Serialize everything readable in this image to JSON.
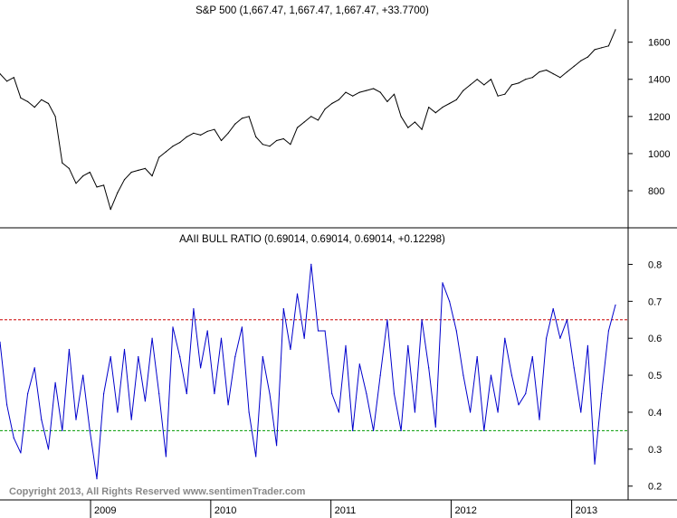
{
  "chart_data": [
    {
      "type": "line",
      "title": "S&P 500 (1,667.47, 1,667.47, 1,667.47, +33.7700)",
      "xlabel": "",
      "ylabel": "",
      "ylim": [
        620,
        1720
      ],
      "yticks": [
        800,
        1000,
        1200,
        1400,
        1600
      ],
      "grid": false,
      "color": "#000000",
      "series": [
        {
          "x": [
            "2008-04-01",
            "2008-04-22",
            "2008-05-13",
            "2008-06-03",
            "2008-06-24",
            "2008-07-15",
            "2008-08-05",
            "2008-08-26",
            "2008-09-16",
            "2008-10-07",
            "2008-10-28",
            "2008-11-18",
            "2008-12-09",
            "2008-12-30",
            "2009-01-20",
            "2009-02-10",
            "2009-03-03",
            "2009-03-24",
            "2009-04-14",
            "2009-05-05",
            "2009-05-26",
            "2009-06-16",
            "2009-07-07",
            "2009-07-28",
            "2009-08-18",
            "2009-09-08",
            "2009-09-29",
            "2009-10-20",
            "2009-11-10",
            "2009-12-01",
            "2009-12-22",
            "2010-01-12",
            "2010-02-02",
            "2010-02-23",
            "2010-03-16",
            "2010-04-06",
            "2010-04-27",
            "2010-05-18",
            "2010-06-08",
            "2010-06-29",
            "2010-07-20",
            "2010-08-10",
            "2010-08-31",
            "2010-09-21",
            "2010-10-12",
            "2010-11-02",
            "2010-11-23",
            "2010-12-14",
            "2011-01-04",
            "2011-01-25",
            "2011-02-15",
            "2011-03-08",
            "2011-03-29",
            "2011-04-19",
            "2011-05-10",
            "2011-05-31",
            "2011-06-21",
            "2011-07-12",
            "2011-08-02",
            "2011-08-23",
            "2011-09-13",
            "2011-10-04",
            "2011-10-25",
            "2011-11-15",
            "2011-12-06",
            "2011-12-27",
            "2012-01-17",
            "2012-02-07",
            "2012-02-28",
            "2012-03-20",
            "2012-04-10",
            "2012-05-01",
            "2012-05-22",
            "2012-06-12",
            "2012-07-03",
            "2012-07-24",
            "2012-08-14",
            "2012-09-04",
            "2012-09-25",
            "2012-10-16",
            "2012-11-06",
            "2012-11-27",
            "2012-12-18",
            "2013-01-08",
            "2013-01-29",
            "2013-02-19",
            "2013-03-12",
            "2013-04-02",
            "2013-04-23",
            "2013-05-14"
          ],
          "values": [
            1430,
            1390,
            1410,
            1300,
            1280,
            1250,
            1290,
            1270,
            1200,
            950,
            920,
            840,
            880,
            900,
            820,
            830,
            700,
            790,
            860,
            900,
            910,
            920,
            880,
            980,
            1010,
            1040,
            1060,
            1090,
            1110,
            1100,
            1120,
            1130,
            1070,
            1110,
            1160,
            1190,
            1200,
            1090,
            1050,
            1040,
            1070,
            1080,
            1050,
            1140,
            1170,
            1200,
            1180,
            1240,
            1270,
            1290,
            1330,
            1310,
            1330,
            1340,
            1350,
            1330,
            1280,
            1320,
            1200,
            1140,
            1170,
            1130,
            1250,
            1220,
            1250,
            1270,
            1290,
            1340,
            1370,
            1400,
            1370,
            1400,
            1310,
            1320,
            1370,
            1380,
            1400,
            1410,
            1440,
            1450,
            1430,
            1410,
            1440,
            1470,
            1500,
            1520,
            1560,
            1570,
            1580,
            1667
          ]
        }
      ]
    },
    {
      "type": "line",
      "title": "AAII BULL RATIO (0.69014, 0.69014, 0.69014, +0.12298)",
      "xlabel": "",
      "ylabel": "",
      "ylim": [
        0.17,
        0.85
      ],
      "yticks": [
        0.2,
        0.3,
        0.4,
        0.5,
        0.6,
        0.7,
        0.8
      ],
      "grid": false,
      "color": "#0000cc",
      "reference_lines": [
        {
          "value": 0.65,
          "color": "#cc0000",
          "style": "dashed"
        },
        {
          "value": 0.35,
          "color": "#009900",
          "style": "dashed"
        }
      ],
      "series": [
        {
          "x": [
            "2008-04-01",
            "2008-04-22",
            "2008-05-13",
            "2008-06-03",
            "2008-06-24",
            "2008-07-15",
            "2008-08-05",
            "2008-08-26",
            "2008-09-16",
            "2008-10-07",
            "2008-10-28",
            "2008-11-18",
            "2008-12-09",
            "2008-12-30",
            "2009-01-20",
            "2009-02-10",
            "2009-03-03",
            "2009-03-24",
            "2009-04-14",
            "2009-05-05",
            "2009-05-26",
            "2009-06-16",
            "2009-07-07",
            "2009-07-28",
            "2009-08-18",
            "2009-09-08",
            "2009-09-29",
            "2009-10-20",
            "2009-11-10",
            "2009-12-01",
            "2009-12-22",
            "2010-01-12",
            "2010-02-02",
            "2010-02-23",
            "2010-03-16",
            "2010-04-06",
            "2010-04-27",
            "2010-05-18",
            "2010-06-08",
            "2010-06-29",
            "2010-07-20",
            "2010-08-10",
            "2010-08-31",
            "2010-09-21",
            "2010-10-12",
            "2010-11-02",
            "2010-11-23",
            "2010-12-14",
            "2011-01-04",
            "2011-01-25",
            "2011-02-15",
            "2011-03-08",
            "2011-03-29",
            "2011-04-19",
            "2011-05-10",
            "2011-05-31",
            "2011-06-21",
            "2011-07-12",
            "2011-08-02",
            "2011-08-23",
            "2011-09-13",
            "2011-10-04",
            "2011-10-25",
            "2011-11-15",
            "2011-12-06",
            "2011-12-27",
            "2012-01-17",
            "2012-02-07",
            "2012-02-28",
            "2012-03-20",
            "2012-04-10",
            "2012-05-01",
            "2012-05-22",
            "2012-06-12",
            "2012-07-03",
            "2012-07-24",
            "2012-08-14",
            "2012-09-04",
            "2012-09-25",
            "2012-10-16",
            "2012-11-06",
            "2012-11-27",
            "2012-12-18",
            "2013-01-08",
            "2013-01-29",
            "2013-02-19",
            "2013-03-12",
            "2013-04-02",
            "2013-04-23",
            "2013-05-14"
          ],
          "values": [
            0.59,
            0.42,
            0.33,
            0.29,
            0.45,
            0.52,
            0.38,
            0.3,
            0.48,
            0.35,
            0.57,
            0.38,
            0.5,
            0.35,
            0.22,
            0.45,
            0.55,
            0.4,
            0.57,
            0.38,
            0.55,
            0.43,
            0.6,
            0.45,
            0.28,
            0.63,
            0.55,
            0.45,
            0.68,
            0.52,
            0.62,
            0.45,
            0.6,
            0.42,
            0.55,
            0.63,
            0.4,
            0.28,
            0.55,
            0.45,
            0.31,
            0.68,
            0.57,
            0.72,
            0.6,
            0.8,
            0.62,
            0.62,
            0.45,
            0.4,
            0.58,
            0.35,
            0.53,
            0.45,
            0.35,
            0.5,
            0.65,
            0.45,
            0.35,
            0.58,
            0.4,
            0.65,
            0.52,
            0.36,
            0.75,
            0.7,
            0.62,
            0.5,
            0.4,
            0.55,
            0.35,
            0.5,
            0.4,
            0.6,
            0.5,
            0.42,
            0.45,
            0.55,
            0.38,
            0.6,
            0.68,
            0.6,
            0.65,
            0.52,
            0.4,
            0.58,
            0.26,
            0.45,
            0.62,
            0.69
          ]
        }
      ]
    }
  ],
  "x_axis": {
    "labels": [
      {
        "label": "2009",
        "date": "2009-01-01"
      },
      {
        "label": "2010",
        "date": "2010-01-01"
      },
      {
        "label": "2011",
        "date": "2011-01-01"
      },
      {
        "label": "2012",
        "date": "2012-01-01"
      },
      {
        "label": "2013",
        "date": "2013-01-01"
      }
    ],
    "start": "2008-04-01",
    "end": "2013-05-14"
  },
  "copyright": "Copyright 2013, All Rights Reserved  www.sentimenTrader.com"
}
